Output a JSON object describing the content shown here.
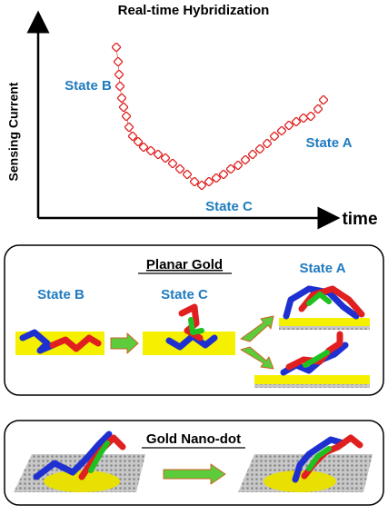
{
  "chart": {
    "title": "Real-time Hybridization",
    "y_label": "Sensing Current",
    "x_label": "time",
    "state_labels": [
      "State B",
      "State A",
      "State C"
    ]
  },
  "planar": {
    "title": "Planar Gold",
    "states": [
      "State B",
      "State C",
      "State A"
    ]
  },
  "nanodot": {
    "title": "Gold Nano-dot"
  }
}
